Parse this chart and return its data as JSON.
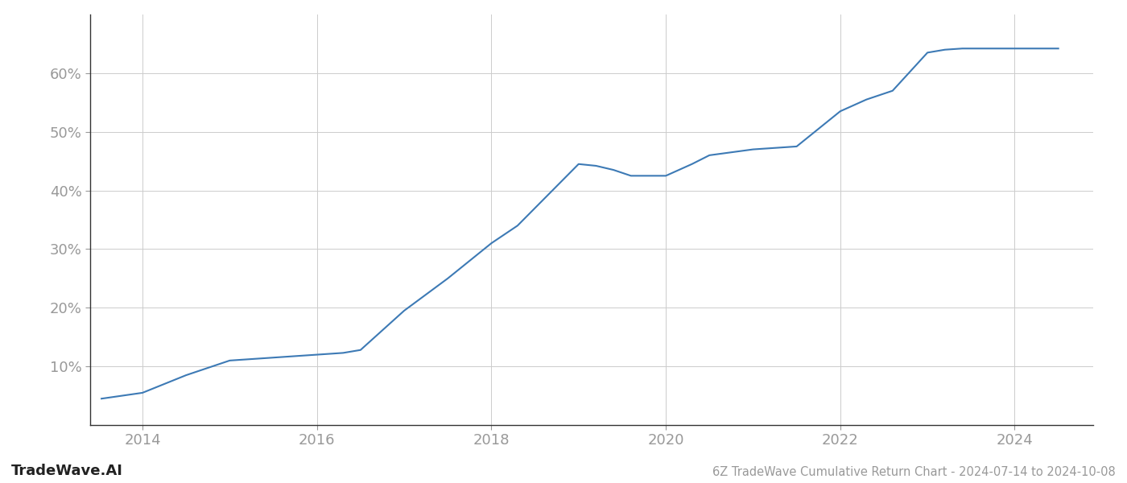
{
  "title": "6Z TradeWave Cumulative Return Chart - 2024-07-14 to 2024-10-08",
  "watermark": "TradeWave.AI",
  "line_color": "#3d7ab5",
  "background_color": "#ffffff",
  "grid_color": "#cccccc",
  "x_data": [
    2013.53,
    2014.0,
    2014.5,
    2015.0,
    2015.3,
    2015.5,
    2016.0,
    2016.3,
    2016.5,
    2017.0,
    2017.5,
    2018.0,
    2018.3,
    2018.6,
    2019.0,
    2019.2,
    2019.4,
    2019.6,
    2020.0,
    2020.3,
    2020.5,
    2021.0,
    2021.5,
    2022.0,
    2022.3,
    2022.6,
    2023.0,
    2023.2,
    2023.4,
    2023.6,
    2024.0,
    2024.5
  ],
  "y_data": [
    4.5,
    5.5,
    8.5,
    11.0,
    11.3,
    11.5,
    12.0,
    12.3,
    12.8,
    19.5,
    25.0,
    31.0,
    34.0,
    38.5,
    44.5,
    44.2,
    43.5,
    42.5,
    42.5,
    44.5,
    46.0,
    47.0,
    47.5,
    53.5,
    55.5,
    57.0,
    63.5,
    64.0,
    64.2,
    64.2,
    64.2,
    64.2
  ],
  "xlim": [
    2013.4,
    2024.9
  ],
  "ylim": [
    0,
    70
  ],
  "yticks": [
    10,
    20,
    30,
    40,
    50,
    60
  ],
  "xticks": [
    2014,
    2016,
    2018,
    2020,
    2022,
    2024
  ],
  "line_width": 1.5,
  "title_fontsize": 10.5,
  "tick_fontsize": 13,
  "watermark_fontsize": 13,
  "spine_color": "#333333",
  "tick_color": "#999999",
  "label_color": "#999999"
}
